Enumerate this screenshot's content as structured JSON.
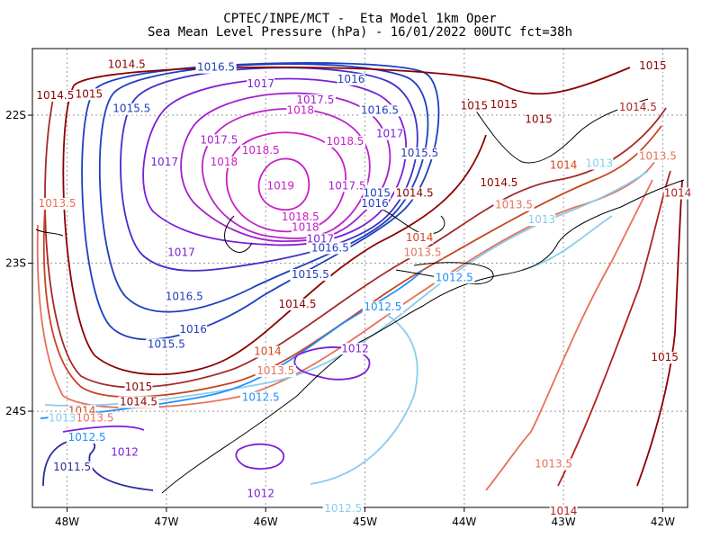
{
  "title": "CPTEC/INPE/MCT -  Eta Model 1km Oper",
  "subtitle": "Sea Mean Level Pressure (hPa) - 16/01/2022 00UTC fct=38h",
  "chart_data": {
    "type": "contour",
    "title": "CPTEC/INPE/MCT -  Eta Model 1km Oper",
    "subtitle": "Sea Mean Level Pressure (hPa) - 16/01/2022 00UTC fct=38h",
    "xlim": [
      -48.35,
      -41.75
    ],
    "ylim": [
      -24.65,
      -21.55
    ],
    "x_ticks": [
      {
        "value": -48,
        "label": "48W"
      },
      {
        "value": -47,
        "label": "47W"
      },
      {
        "value": -46,
        "label": "46W"
      },
      {
        "value": -45,
        "label": "45W"
      },
      {
        "value": -44,
        "label": "44W"
      },
      {
        "value": -43,
        "label": "43W"
      },
      {
        "value": -42,
        "label": "42W"
      }
    ],
    "y_ticks": [
      {
        "value": -22,
        "label": "22S"
      },
      {
        "value": -23,
        "label": "23S"
      },
      {
        "value": -24,
        "label": "24S"
      }
    ],
    "grid": true,
    "high_center": {
      "lon": -45.95,
      "lat": -22.39,
      "value": 1019
    },
    "contour_labels": [
      {
        "text": "1014.5",
        "lon": -47.4,
        "lat": -21.68,
        "color": "#8b0000"
      },
      {
        "text": "1016.5",
        "lon": -46.5,
        "lat": -21.7,
        "color": "#1e3fbf"
      },
      {
        "text": "1016",
        "lon": -45.14,
        "lat": -21.78,
        "color": "#1e3fbf"
      },
      {
        "text": "1015",
        "lon": -42.1,
        "lat": -21.69,
        "color": "#8b0000"
      },
      {
        "text": "1014.5",
        "lon": -48.12,
        "lat": -21.89,
        "color": "#8b0000"
      },
      {
        "text": "1015",
        "lon": -47.78,
        "lat": -21.88,
        "color": "#8b0000"
      },
      {
        "text": "1017",
        "lon": -46.05,
        "lat": -21.81,
        "color": "#7a1fd8"
      },
      {
        "text": "1017.5",
        "lon": -45.5,
        "lat": -21.92,
        "color": "#a51fd0"
      },
      {
        "text": "1015",
        "lon": -43.9,
        "lat": -21.96,
        "color": "#8b0000"
      },
      {
        "text": "1015",
        "lon": -43.6,
        "lat": -21.95,
        "color": "#8b0000"
      },
      {
        "text": "1014.5",
        "lon": -42.25,
        "lat": -21.97,
        "color": "#b22222"
      },
      {
        "text": "1015.5",
        "lon": -47.35,
        "lat": -21.98,
        "color": "#1e3fbf"
      },
      {
        "text": "1018",
        "lon": -45.65,
        "lat": -21.99,
        "color": "#c71ec7"
      },
      {
        "text": "1016.5",
        "lon": -44.85,
        "lat": -21.99,
        "color": "#1e3fbf"
      },
      {
        "text": "1015",
        "lon": -43.25,
        "lat": -22.05,
        "color": "#8b0000"
      },
      {
        "text": "1017",
        "lon": -44.75,
        "lat": -22.15,
        "color": "#7a1fd8"
      },
      {
        "text": "1017.5",
        "lon": -46.47,
        "lat": -22.19,
        "color": "#a51fd0"
      },
      {
        "text": "1018.5",
        "lon": -46.05,
        "lat": -22.26,
        "color": "#c71ec7"
      },
      {
        "text": "1018.5",
        "lon": -45.2,
        "lat": -22.2,
        "color": "#c71ec7"
      },
      {
        "text": "1015.5",
        "lon": -44.45,
        "lat": -22.28,
        "color": "#1e3fbf"
      },
      {
        "text": "1013.5",
        "lon": -42.05,
        "lat": -22.3,
        "color": "#e8705a"
      },
      {
        "text": "1017",
        "lon": -47.02,
        "lat": -22.34,
        "color": "#7a1fd8"
      },
      {
        "text": "1018",
        "lon": -46.42,
        "lat": -22.34,
        "color": "#c71ec7"
      },
      {
        "text": "1014",
        "lon": -43.0,
        "lat": -22.36,
        "color": "#d0481f"
      },
      {
        "text": "1013",
        "lon": -42.64,
        "lat": -22.35,
        "color": "#87ceeb"
      },
      {
        "text": "1019",
        "lon": -45.85,
        "lat": -22.5,
        "color": "#c71ec7"
      },
      {
        "text": "1017.5",
        "lon": -45.18,
        "lat": -22.5,
        "color": "#a51fd0"
      },
      {
        "text": "1015",
        "lon": -44.88,
        "lat": -22.55,
        "color": "#1e3fbf"
      },
      {
        "text": "1014.5",
        "lon": -44.5,
        "lat": -22.55,
        "color": "#8b0000"
      },
      {
        "text": "1014.5",
        "lon": -43.65,
        "lat": -22.48,
        "color": "#8b0000"
      },
      {
        "text": "1014",
        "lon": -41.85,
        "lat": -22.55,
        "color": "#b22222"
      },
      {
        "text": "1013.5",
        "lon": -48.1,
        "lat": -22.62,
        "color": "#e8705a"
      },
      {
        "text": "1016",
        "lon": -44.9,
        "lat": -22.62,
        "color": "#1e3fbf"
      },
      {
        "text": "1013.5",
        "lon": -43.5,
        "lat": -22.63,
        "color": "#e8705a"
      },
      {
        "text": "1018.5",
        "lon": -45.65,
        "lat": -22.71,
        "color": "#c71ec7"
      },
      {
        "text": "1018",
        "lon": -45.6,
        "lat": -22.78,
        "color": "#c71ec7"
      },
      {
        "text": "1013",
        "lon": -43.22,
        "lat": -22.73,
        "color": "#87ceeb"
      },
      {
        "text": "1017",
        "lon": -45.45,
        "lat": -22.86,
        "color": "#7a1fd8"
      },
      {
        "text": "1014",
        "lon": -44.45,
        "lat": -22.85,
        "color": "#d0481f"
      },
      {
        "text": "1016.5",
        "lon": -45.35,
        "lat": -22.92,
        "color": "#1e3fbf"
      },
      {
        "text": "1013.5",
        "lon": -44.42,
        "lat": -22.95,
        "color": "#e8705a"
      },
      {
        "text": "1017",
        "lon": -46.85,
        "lat": -22.95,
        "color": "#7a1fd8"
      },
      {
        "text": "1015.5",
        "lon": -45.55,
        "lat": -23.1,
        "color": "#1e3fbf"
      },
      {
        "text": "1012.5",
        "lon": -44.1,
        "lat": -23.12,
        "color": "#1e90ff"
      },
      {
        "text": "1016.5",
        "lon": -46.82,
        "lat": -23.25,
        "color": "#1e3fbf"
      },
      {
        "text": "1014.5",
        "lon": -45.68,
        "lat": -23.3,
        "color": "#8b0000"
      },
      {
        "text": "1012.5",
        "lon": -44.82,
        "lat": -23.32,
        "color": "#1e90ff"
      },
      {
        "text": "1016",
        "lon": -46.73,
        "lat": -23.47,
        "color": "#1e3fbf"
      },
      {
        "text": "1015.5",
        "lon": -47.0,
        "lat": -23.57,
        "color": "#1e3fbf"
      },
      {
        "text": "1012",
        "lon": -45.1,
        "lat": -23.6,
        "color": "#7a1fd8"
      },
      {
        "text": "1015",
        "lon": -41.98,
        "lat": -23.66,
        "color": "#8b0000"
      },
      {
        "text": "1014",
        "lon": -45.98,
        "lat": -23.62,
        "color": "#d0481f"
      },
      {
        "text": "1013.5",
        "lon": -45.9,
        "lat": -23.75,
        "color": "#e8705a"
      },
      {
        "text": "1015",
        "lon": -47.28,
        "lat": -23.86,
        "color": "#8b0000"
      },
      {
        "text": "1014.5",
        "lon": -47.28,
        "lat": -23.96,
        "color": "#8b0000"
      },
      {
        "text": "1012.5",
        "lon": -46.05,
        "lat": -23.93,
        "color": "#1e90ff"
      },
      {
        "text": "1014",
        "lon": -47.85,
        "lat": -24.02,
        "color": "#d0481f"
      },
      {
        "text": "1013.5",
        "lon": -47.72,
        "lat": -24.07,
        "color": "#e8705a"
      },
      {
        "text": "1013",
        "lon": -48.05,
        "lat": -24.07,
        "color": "#87ceeb"
      },
      {
        "text": "1012.5",
        "lon": -47.8,
        "lat": -24.2,
        "color": "#1e90ff"
      },
      {
        "text": "1012",
        "lon": -47.42,
        "lat": -24.3,
        "color": "#7a1fd8"
      },
      {
        "text": "1011.5",
        "lon": -47.95,
        "lat": -24.4,
        "color": "#2b2b9e"
      },
      {
        "text": "1013.5",
        "lon": -43.1,
        "lat": -24.38,
        "color": "#e8705a"
      },
      {
        "text": "1012",
        "lon": -46.05,
        "lat": -24.58,
        "color": "#7a1fd8"
      },
      {
        "text": "1012.5",
        "lon": -45.22,
        "lat": -24.68,
        "color": "#87ceeb"
      },
      {
        "text": "1014",
        "lon": -43.0,
        "lat": -24.7,
        "color": "#b22222"
      }
    ]
  }
}
